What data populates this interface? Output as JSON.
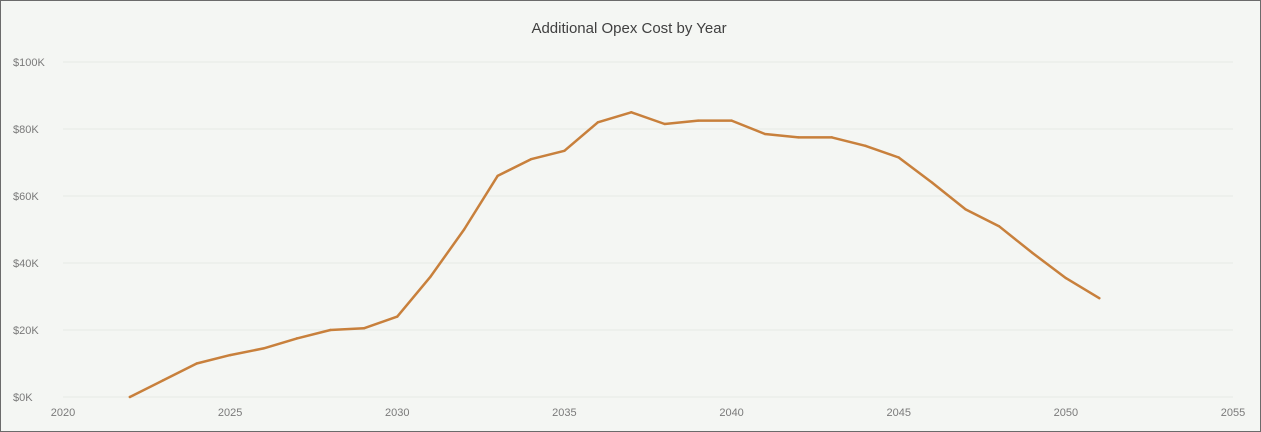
{
  "chart_data": {
    "type": "line",
    "title": "Additional Opex Cost by Year",
    "xlabel": "",
    "ylabel": "",
    "xlim": [
      2020,
      2055
    ],
    "ylim": [
      0,
      100000
    ],
    "x_ticks": [
      2020,
      2025,
      2030,
      2035,
      2040,
      2045,
      2050,
      2055
    ],
    "y_ticks": [
      {
        "value": 0,
        "label": "$0K"
      },
      {
        "value": 20000,
        "label": "$20K"
      },
      {
        "value": 40000,
        "label": "$40K"
      },
      {
        "value": 60000,
        "label": "$60K"
      },
      {
        "value": 80000,
        "label": "$80K"
      },
      {
        "value": 100000,
        "label": "$100K"
      }
    ],
    "grid": true,
    "legend": "none",
    "color": "#c8803c",
    "series": [
      {
        "x": [
          2022,
          2023,
          2024,
          2025,
          2026,
          2027,
          2028,
          2029,
          2030,
          2031,
          2032,
          2033,
          2034,
          2035,
          2036,
          2037,
          2038,
          2039,
          2040,
          2041,
          2042,
          2043,
          2044,
          2045,
          2046,
          2047,
          2048,
          2049,
          2050,
          2051
        ],
        "values": [
          0,
          5000,
          10000,
          12500,
          14500,
          17500,
          20000,
          20500,
          24000,
          36000,
          50000,
          66000,
          71000,
          73500,
          82000,
          85000,
          81500,
          82500,
          82500,
          78500,
          77500,
          77500,
          75000,
          71500,
          64000,
          56000,
          51000,
          43000,
          35500,
          29500
        ]
      }
    ]
  }
}
